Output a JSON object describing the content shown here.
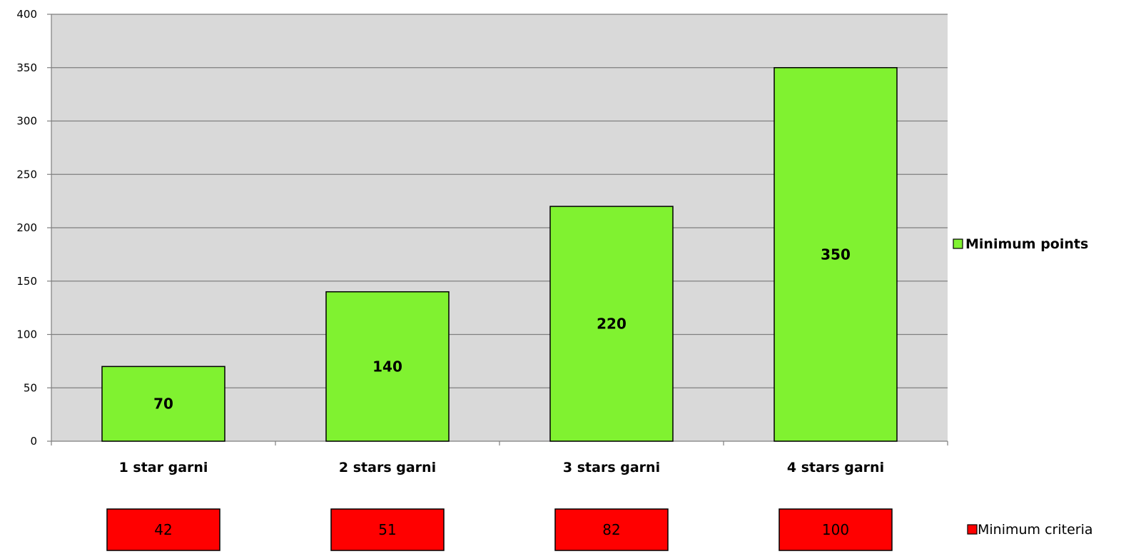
{
  "chart_data": {
    "type": "bar",
    "categories": [
      "1 star garni",
      "2 stars garni",
      "3 stars garni",
      "4 stars garni"
    ],
    "series": [
      {
        "name": "Minimum points",
        "values": [
          70,
          140,
          220,
          350
        ],
        "color": "#80f230"
      }
    ],
    "ylim": [
      0,
      400
    ],
    "yticks": [
      0,
      50,
      100,
      150,
      200,
      250,
      300,
      350,
      400
    ],
    "grid": true,
    "plot_background": "#d9d9d9",
    "legend_position": "right",
    "secondary_row": {
      "name": "Minimum criteria",
      "values": [
        42,
        51,
        82,
        100
      ],
      "color": "#ff0000"
    }
  }
}
